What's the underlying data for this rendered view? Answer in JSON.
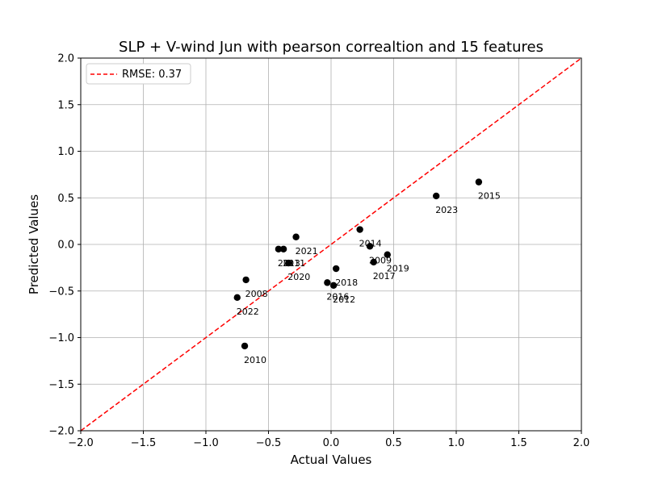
{
  "chart_data": {
    "type": "scatter",
    "title": "SLP + V-wind Jun with pearson correaltion and 15 features",
    "xlabel": "Actual Values",
    "ylabel": "Predicted Values",
    "xlim": [
      -2.0,
      2.0
    ],
    "ylim": [
      -2.0,
      2.0
    ],
    "xticks": [
      -2.0,
      -1.5,
      -1.0,
      -0.5,
      0.0,
      0.5,
      1.0,
      1.5,
      2.0
    ],
    "yticks": [
      -2.0,
      -1.5,
      -1.0,
      -0.5,
      0.0,
      0.5,
      1.0,
      1.5,
      2.0
    ],
    "xtick_labels": [
      "−2.0",
      "−1.5",
      "−1.0",
      "−0.5",
      "0.0",
      "0.5",
      "1.0",
      "1.5",
      "2.0"
    ],
    "ytick_labels": [
      "−2.0",
      "−1.5",
      "−1.0",
      "−0.5",
      "0.0",
      "0.5",
      "1.0",
      "1.5",
      "2.0"
    ],
    "grid": true,
    "legend": {
      "placement": "top-left",
      "entries": [
        "RMSE: 0.37"
      ]
    },
    "reference_line": {
      "name": "RMSE: 0.37",
      "style": "dashed",
      "color": "#ff0000",
      "x": [
        -2.0,
        2.0
      ],
      "y": [
        -2.0,
        2.0
      ]
    },
    "point_color": "#000000",
    "points": [
      {
        "label": "2008",
        "x": -0.68,
        "y": -0.38
      },
      {
        "label": "2009",
        "x": 0.31,
        "y": -0.02
      },
      {
        "label": "2010",
        "x": -0.69,
        "y": -1.09
      },
      {
        "label": "2011",
        "x": -0.38,
        "y": -0.05
      },
      {
        "label": "2012",
        "x": 0.02,
        "y": -0.44
      },
      {
        "label": "2013",
        "x": -0.42,
        "y": -0.05
      },
      {
        "label": "2014",
        "x": 0.23,
        "y": 0.16
      },
      {
        "label": "2015",
        "x": 1.18,
        "y": 0.67
      },
      {
        "label": "2016",
        "x": -0.03,
        "y": -0.41
      },
      {
        "label": "2017",
        "x": 0.34,
        "y": -0.19
      },
      {
        "label": "2018",
        "x": 0.04,
        "y": -0.26
      },
      {
        "label": "2019",
        "x": 0.45,
        "y": -0.11
      },
      {
        "label": "2020",
        "x": -0.34,
        "y": -0.2
      },
      {
        "label": "2021",
        "x": -0.28,
        "y": 0.08
      },
      {
        "label": "2022",
        "x": -0.75,
        "y": -0.57
      },
      {
        "label": "2023",
        "x": 0.84,
        "y": 0.52
      }
    ]
  }
}
